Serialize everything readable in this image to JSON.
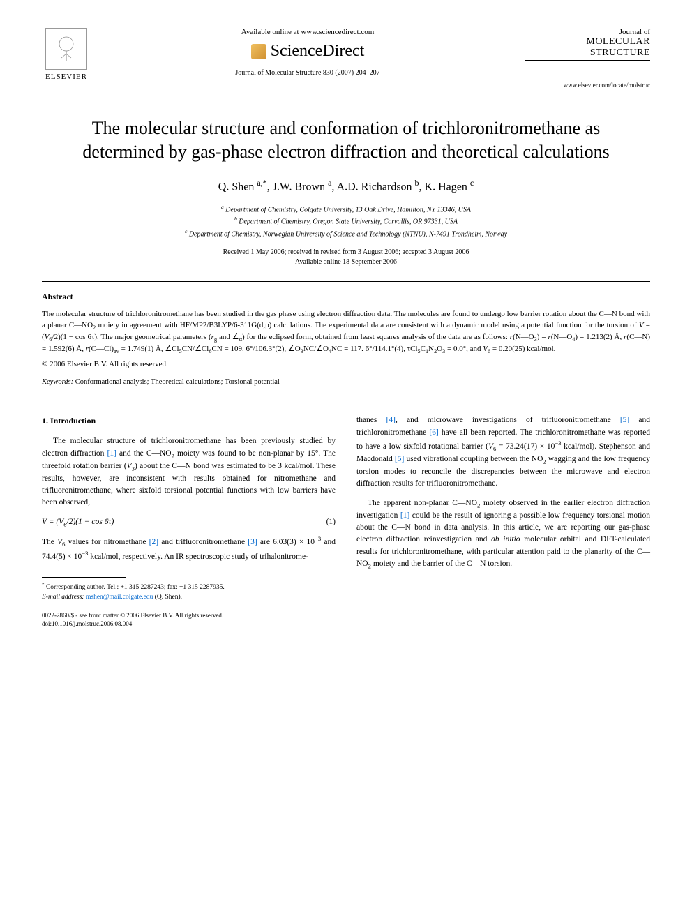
{
  "header": {
    "publisher": "ELSEVIER",
    "available_online": "Available online at www.sciencedirect.com",
    "sciencedirect": "ScienceDirect",
    "citation": "Journal of Molecular Structure 830 (2007) 204–207",
    "journal_of": "Journal of",
    "journal_title_1": "MOLECULAR",
    "journal_title_2": "STRUCTURE",
    "journal_url": "www.elsevier.com/locate/molstruc"
  },
  "title": "The molecular structure and conformation of trichloronitromethane as determined by gas-phase electron diffraction and theoretical calculations",
  "authors_html": "Q. Shen <sup>a,*</sup>, J.W. Brown <sup>a</sup>, A.D. Richardson <sup>b</sup>, K. Hagen <sup>c</sup>",
  "affiliations": {
    "a": "Department of Chemistry, Colgate University, 13 Oak Drive, Hamilton, NY 13346, USA",
    "b": "Department of Chemistry, Oregon State University, Corvallis, OR 97331, USA",
    "c": "Department of Chemistry, Norwegian University of Science and Technology (NTNU), N-7491 Trondheim, Norway"
  },
  "dates": {
    "received": "Received 1 May 2006; received in revised form 3 August 2006; accepted 3 August 2006",
    "online": "Available online 18 September 2006"
  },
  "abstract": {
    "heading": "Abstract",
    "body_html": "The molecular structure of trichloronitromethane has been studied in the gas phase using electron diffraction data. The molecules are found to undergo low barrier rotation about the C—N bond with a planar C—NO<sub>2</sub> moiety in agreement with HF/MP2/B3LYP/6-311G(d,p) calculations. The experimental data are consistent with a dynamic model using a potential function for the torsion of <i>V</i> = (<i>V</i><sub>6</sub>/2)(1 − cos 6τ). The major geometrical parameters (<i>r</i><sub>g</sub> and ∠<sub>α</sub>) for the eclipsed form, obtained from least squares analysis of the data are as follows: <i>r</i>(N—O<sub>3</sub>) = <i>r</i>(N—O<sub>4</sub>) = 1.213(2) Å, <i>r</i>(C—N) = 1.592(6) Å, <i>r</i>(C—Cl)<sub>av</sub> = 1.749(1) Å, ∠Cl<sub>5</sub>CN/∠Cl<sub>6</sub>CN = 109. 6°/106.3°(2), ∠O<sub>3</sub>NC/∠O<sub>4</sub>NC = 117. 6°/114.1°(4), τCl<sub>5</sub>C<sub>1</sub>N<sub>2</sub>O<sub>3</sub> = 0.0°, and <i>V</i><sub>6</sub> = 0.20(25) kcal/mol.",
    "copyright": "© 2006 Elsevier B.V. All rights reserved."
  },
  "keywords": {
    "label": "Keywords:",
    "text": "Conformational analysis; Theoretical calculations; Torsional potential"
  },
  "intro": {
    "heading": "1. Introduction",
    "p1_html": "The molecular structure of trichloronitromethane has been previously studied by electron diffraction <span class='ref-link'>[1]</span> and the C—NO<sub>2</sub> moiety was found to be non-planar by 15°. The threefold rotation barrier (<i>V</i><sub>3</sub>) about the C—N bond was estimated to be 3 kcal/mol. These results, however, are inconsistent with results obtained for nitromethane and trifluoronitromethane, where sixfold torsional potential functions with low barriers have been observed,",
    "eq_html": "<i>V</i> = (<i>V</i><sub>6</sub>/2)(1 − cos 6τ)",
    "eq_num": "(1)",
    "p2_html": "The <i>V</i><sub>6</sub> values for nitromethane <span class='ref-link'>[2]</span> and trifluoronitromethane <span class='ref-link'>[3]</span> are 6.03(3) × 10<sup>−3</sup> and 74.4(5) × 10<sup>−3</sup> kcal/mol, respectively. An IR spectroscopic study of trihalonitrome-",
    "p3_html": "thanes <span class='ref-link'>[4]</span>, and microwave investigations of trifluoronitromethane <span class='ref-link'>[5]</span> and trichloronitromethane <span class='ref-link'>[6]</span> have all been reported. The trichloronitromethane was reported to have a low sixfold rotational barrier (<i>V</i><sub>6</sub> = 73.24(17) × 10<sup>−3</sup> kcal/mol). Stephenson and Macdonald <span class='ref-link'>[5]</span> used vibrational coupling between the NO<sub>2</sub> wagging and the low frequency torsion modes to reconcile the discrepancies between the microwave and electron diffraction results for trifluoronitromethane.",
    "p4_html": "The apparent non-planar C—NO<sub>2</sub> moiety observed in the earlier electron diffraction investigation <span class='ref-link'>[1]</span> could be the result of ignoring a possible low frequency torsional motion about the C—N bond in data analysis. In this article, we are reporting our gas-phase electron diffraction reinvestigation and <i>ab initio</i> molecular orbital and DFT-calculated results for trichloronitromethane, with particular attention paid to the planarity of the C—NO<sub>2</sub> moiety and the barrier of the C—N torsion."
  },
  "footnote": {
    "corr": "Corresponding author. Tel.: +1 315 2287243; fax: +1 315 2287935.",
    "email_label": "E-mail address:",
    "email": "mshen@mail.colgate.edu",
    "email_who": "(Q. Shen)."
  },
  "doi": {
    "line1": "0022-2860/$ - see front matter © 2006 Elsevier B.V. All rights reserved.",
    "line2": "doi:10.1016/j.molstruc.2006.08.004"
  },
  "colors": {
    "ref_link": "#0066cc",
    "text": "#000000",
    "background": "#ffffff"
  }
}
